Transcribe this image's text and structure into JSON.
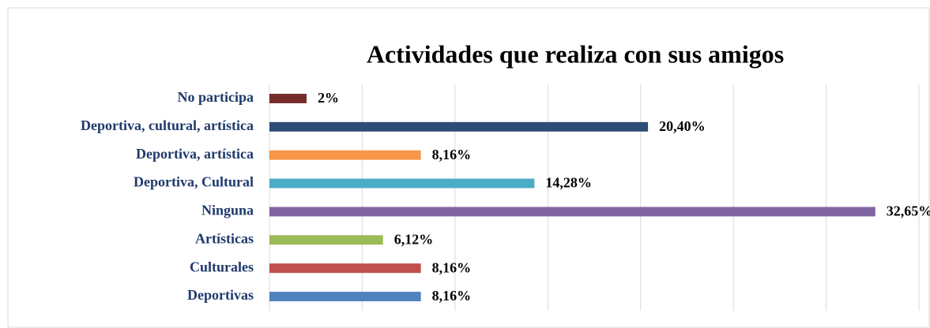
{
  "chart_data": {
    "type": "bar",
    "orientation": "horizontal",
    "title": "Actividades que realiza con sus amigos",
    "categories": [
      "No participa",
      "Deportiva, cultural, artística",
      "Deportiva, artística",
      "Deportiva, Cultural",
      "Ninguna",
      "Artísticas",
      "Culturales",
      "Deportivas"
    ],
    "values": [
      2,
      20.4,
      8.16,
      14.28,
      32.65,
      6.12,
      8.16,
      8.16
    ],
    "value_labels": [
      "2%",
      "20,40%",
      "8,16%",
      "14,28%",
      "32,65%",
      "6,12%",
      "8,16%",
      "8,16%"
    ],
    "colors": [
      "#772c2a",
      "#2c4d75",
      "#f79646",
      "#4bacc6",
      "#8064a2",
      "#9bbb59",
      "#c0504d",
      "#4f81bd"
    ],
    "xlim": [
      0,
      35
    ],
    "xticks": [
      0,
      5,
      10,
      15,
      20,
      25,
      30,
      35
    ],
    "grid": true
  }
}
